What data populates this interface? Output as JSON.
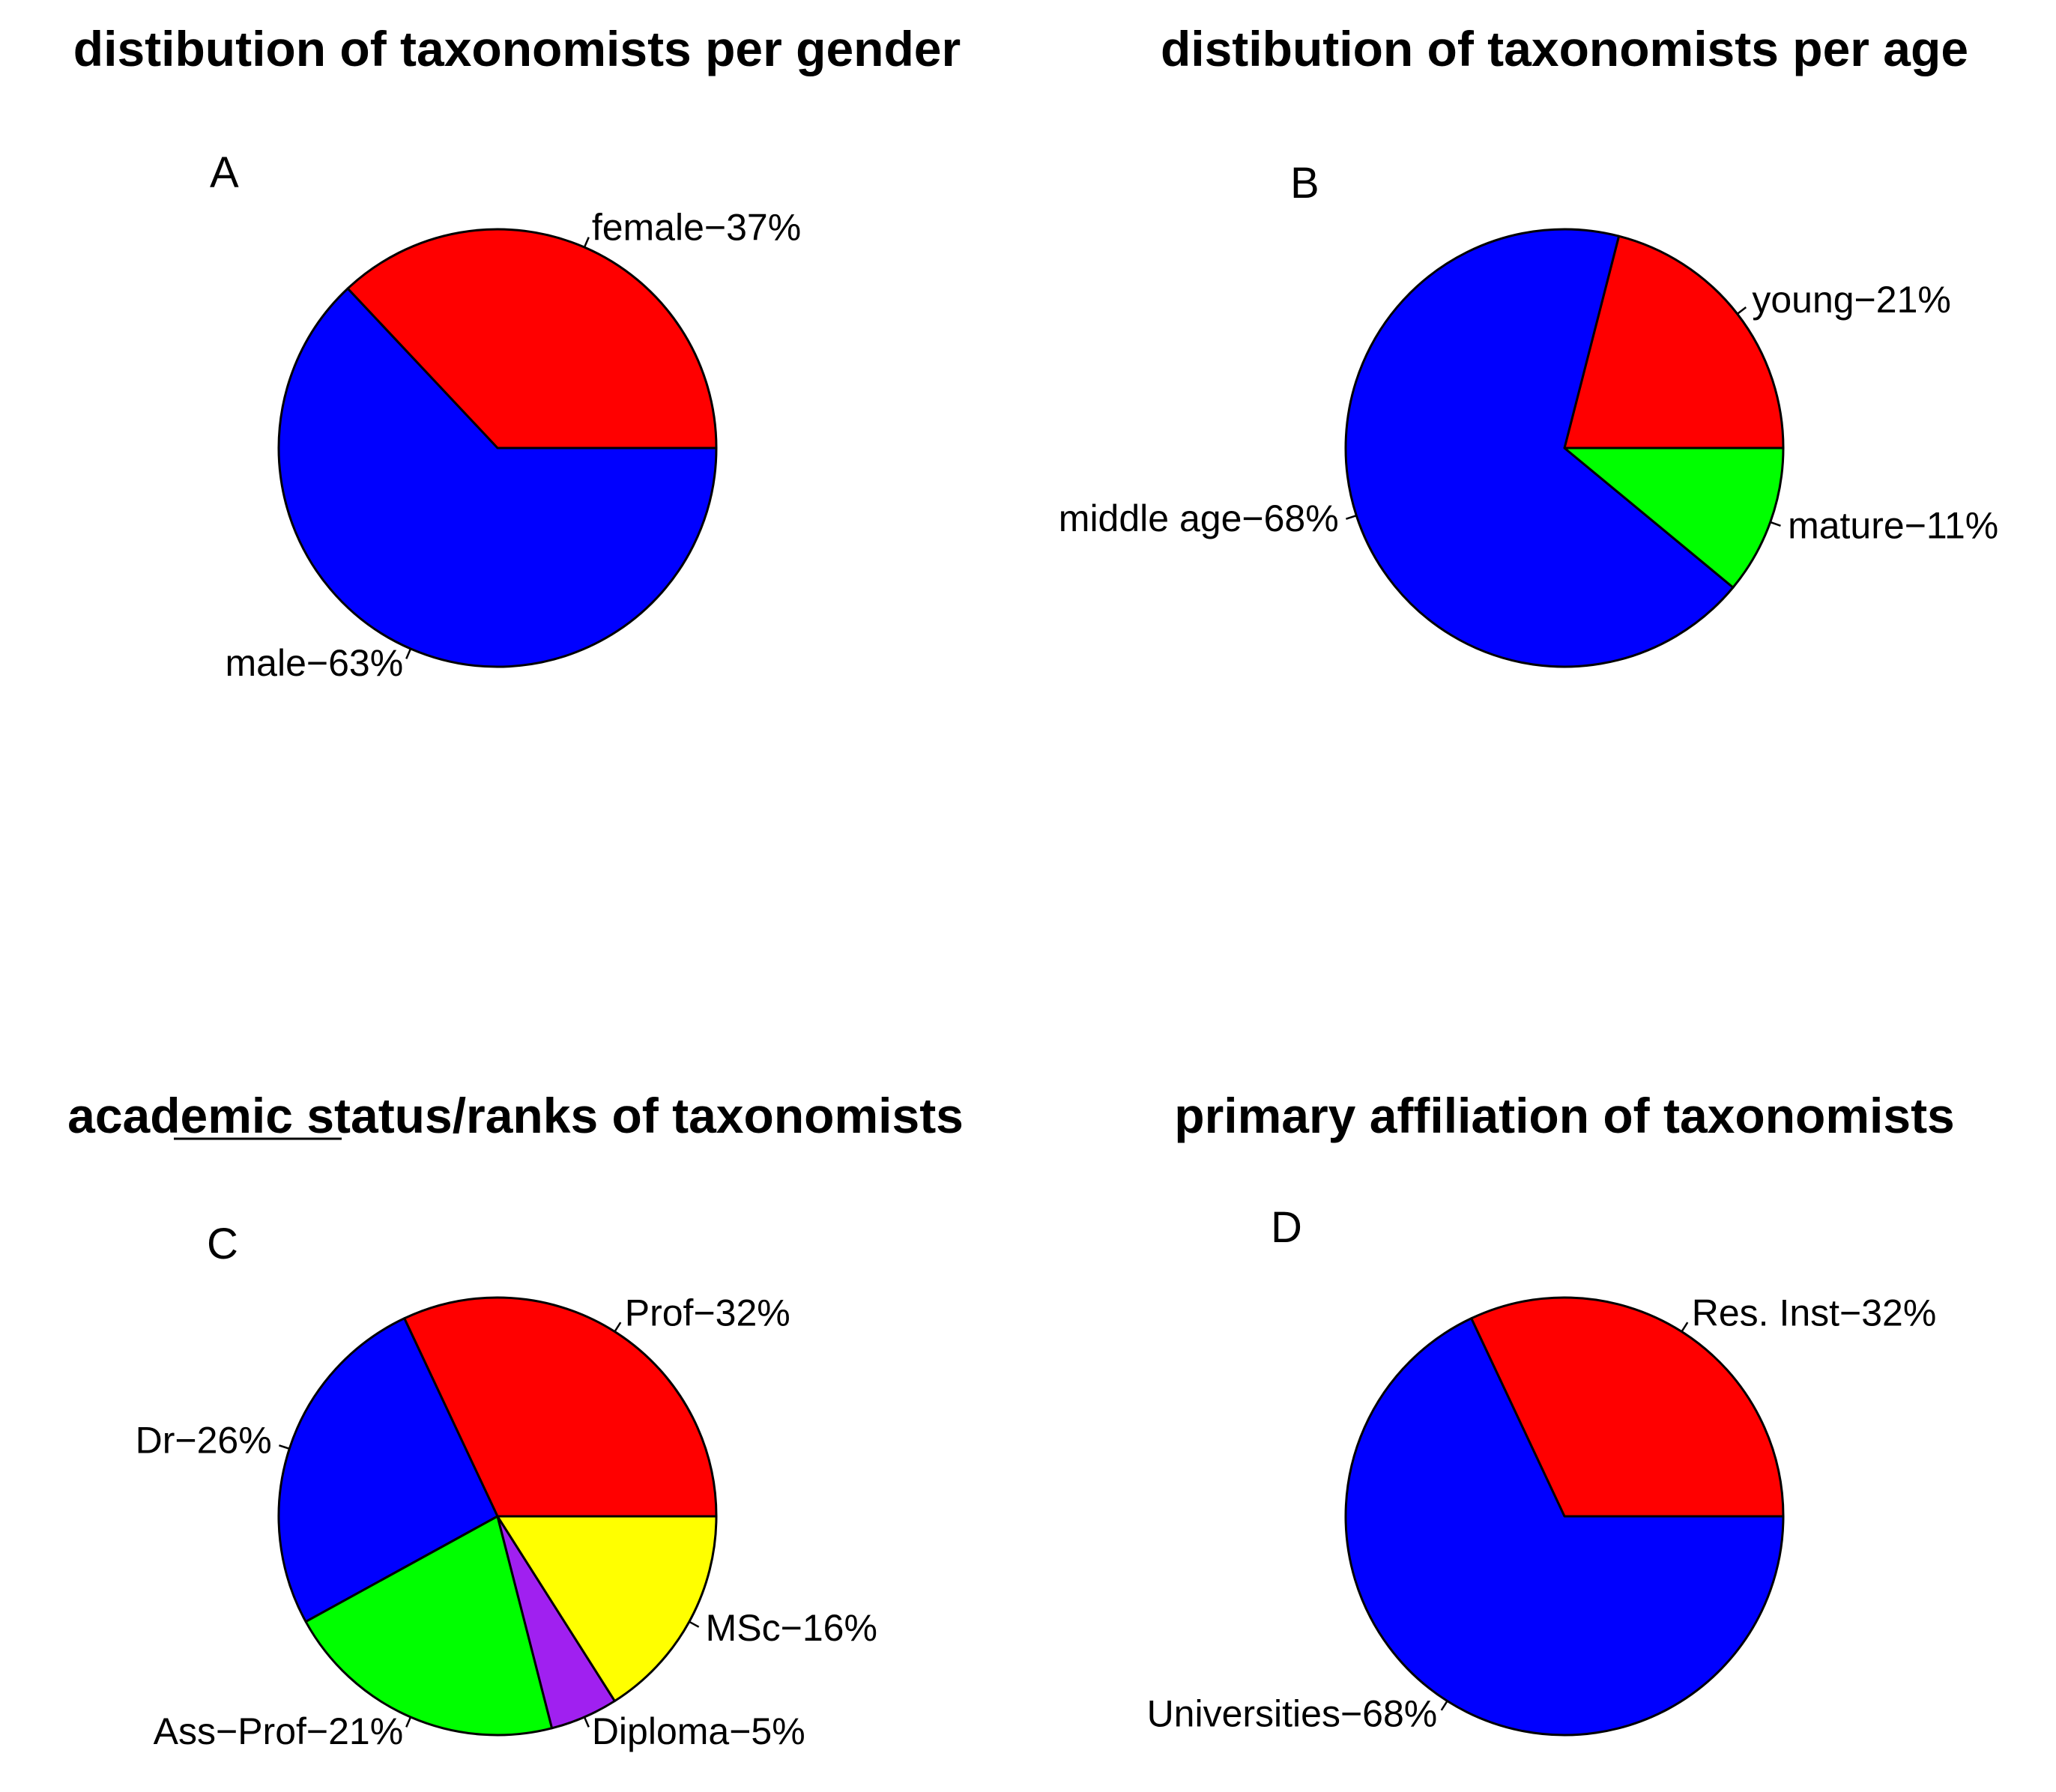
{
  "chart_data": [
    {
      "type": "pie",
      "title": "distibution of taxonomists per gender",
      "panel": "A",
      "slices": [
        {
          "label": "female",
          "value": 37,
          "text": "female−37%",
          "color": "#ff0000"
        },
        {
          "label": "male",
          "value": 63,
          "text": "male−63%",
          "color": "#0000ff"
        }
      ]
    },
    {
      "type": "pie",
      "title": "distibution of taxonomists per age",
      "panel": "B",
      "slices": [
        {
          "label": "young",
          "value": 21,
          "text": "young−21%",
          "color": "#ff0000"
        },
        {
          "label": "middle age",
          "value": 68,
          "text": "middle age−68%",
          "color": "#0000ff"
        },
        {
          "label": "mature",
          "value": 11,
          "text": "mature−11%",
          "color": "#00ff00"
        }
      ]
    },
    {
      "type": "pie",
      "title": "academic status/ranks of taxonomists",
      "panel": "C",
      "slices": [
        {
          "label": "Prof",
          "value": 32,
          "text": "Prof−32%",
          "color": "#ff0000"
        },
        {
          "label": "Dr",
          "value": 26,
          "text": "Dr−26%",
          "color": "#0000ff"
        },
        {
          "label": "Ass-Prof",
          "value": 21,
          "text": "Ass−Prof−21%",
          "color": "#00ff00"
        },
        {
          "label": "Diploma",
          "value": 5,
          "text": "Diploma−5%",
          "color": "#a020f0"
        },
        {
          "label": "MSc",
          "value": 16,
          "text": "MSc−16%",
          "color": "#ffff00"
        }
      ]
    },
    {
      "type": "pie",
      "title": "primary affiliation of taxonomists",
      "panel": "D",
      "slices": [
        {
          "label": "Res. Inst",
          "value": 32,
          "text": "Res. Inst−32%",
          "color": "#ff0000"
        },
        {
          "label": "Universities",
          "value": 68,
          "text": "Universities−68%",
          "color": "#0000ff"
        }
      ]
    }
  ]
}
